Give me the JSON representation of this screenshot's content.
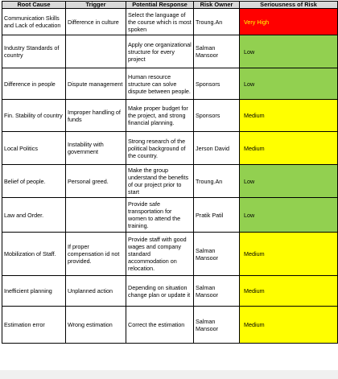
{
  "columns": [
    "Root Cause",
    "Trigger",
    "Potential Response",
    "Risk Owner",
    "Seriousness of Risk"
  ],
  "colors": {
    "very_high": "#ff0000",
    "low": "#92d050",
    "medium": "#ffff00",
    "header": "#d9d9d9"
  },
  "rows": [
    {
      "root_cause": "Communication Skills and Lack of education",
      "trigger": "Difference in culture",
      "response": "Select the language of the course which is most spoken",
      "owner": "Troung.An",
      "seriousness": "Very High",
      "level": "very_high"
    },
    {
      "root_cause": "Industry Standards of country",
      "trigger": "",
      "response": "Apply one organizational structure for every project",
      "owner": "Salman Mansoor",
      "seriousness": "Low",
      "level": "low"
    },
    {
      "root_cause": "Difference in people",
      "trigger": "Dispute management",
      "response": "Human resource structure can solve dispute between people.",
      "owner": "Sponsors",
      "seriousness": "Low",
      "level": "low"
    },
    {
      "root_cause": "Fin. Stability of country",
      "trigger": "Improper handling of funds",
      "response": "Make proper budget for the project, and strong financial planning.",
      "owner": "Sponsors",
      "seriousness": "Medium",
      "level": "medium"
    },
    {
      "root_cause": "Local Politics",
      "trigger": "Instability with government",
      "response": "Strong research of the political background of the country.",
      "owner": "Jerson David",
      "seriousness": "Medium",
      "level": "medium"
    },
    {
      "root_cause": "Belief of people.",
      "trigger": "Personal greed.",
      "response": "Make the group understand the benefits of our project prior to start",
      "owner": "Troung.An",
      "seriousness": "Low",
      "level": "low"
    },
    {
      "root_cause": "Law and Order.",
      "trigger": "",
      "response": "Provide safe transportation for women to attend the training.",
      "owner": "Pratik Patil",
      "seriousness": "Low",
      "level": "low"
    },
    {
      "root_cause": "Mobilization of Staff.",
      "trigger": "If proper compensation id not provided.",
      "response": "Provide staff with good wages and company standard accommodation on relocation.",
      "owner": "Salman Mansoor",
      "seriousness": "Medium",
      "level": "medium"
    },
    {
      "root_cause": "Inefficient planning",
      "trigger": "Unplanned action",
      "response": "Depending on situation change plan or update it",
      "owner": "Salman Mansoor",
      "seriousness": "Medium",
      "level": "medium"
    },
    {
      "root_cause": "Estimation error",
      "trigger": "Wrong estimation",
      "response": "Correct the estimation",
      "owner": "Salman Mansoor",
      "seriousness": "Medium",
      "level": "medium"
    }
  ]
}
